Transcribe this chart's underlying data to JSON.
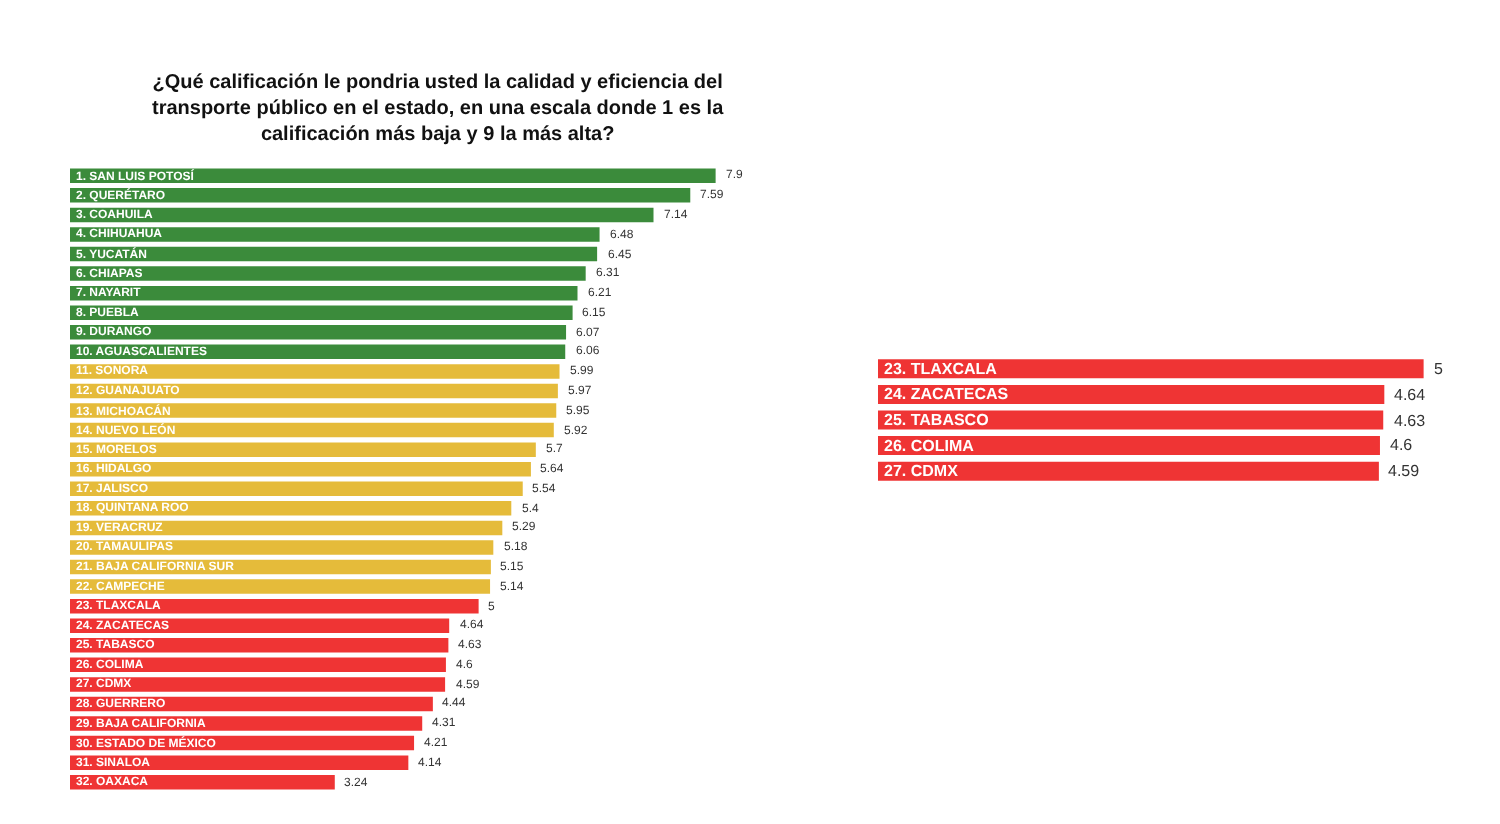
{
  "chart_data": [
    {
      "type": "bar",
      "orientation": "horizontal",
      "title": "¿Qué calificación le pondria usted la calidad y eficiencia del transporte público en el estado, en una escala donde 1 es la calificación más baja y 9 la más alta?",
      "categories": [
        "1. SAN LUIS POTOSÍ",
        "2. QUERÉTARO",
        "3. COAHUILA",
        "4. CHIHUAHUA",
        "5. YUCATÁN",
        "6. CHIAPAS",
        "7. NAYARIT",
        "8. PUEBLA",
        "9. DURANGO",
        "10. AGUASCALIENTES",
        "11. SONORA",
        "12. GUANAJUATO",
        "13. MICHOACÁN",
        "14. NUEVO LEÓN",
        "15. MORELOS",
        "16. HIDALGO",
        "17. JALISCO",
        "18. QUINTANA ROO",
        "19. VERACRUZ",
        "20. TAMAULIPAS",
        "21. BAJA CALIFORNIA SUR",
        "22. CAMPECHE",
        "23. TLAXCALA",
        "24. ZACATECAS",
        "25. TABASCO",
        "26. COLIMA",
        "27. CDMX",
        "28. GUERRERO",
        "29. BAJA CALIFORNIA",
        "30. ESTADO DE MÉXICO",
        "31. SINALOA",
        "32. OAXACA"
      ],
      "values": [
        7.9,
        7.59,
        7.14,
        6.48,
        6.45,
        6.31,
        6.21,
        6.15,
        6.07,
        6.06,
        5.99,
        5.97,
        5.95,
        5.92,
        5.7,
        5.64,
        5.54,
        5.4,
        5.29,
        5.18,
        5.15,
        5.14,
        5,
        4.64,
        4.63,
        4.6,
        4.59,
        4.44,
        4.31,
        4.21,
        4.14,
        3.24
      ],
      "colors": [
        "#3b8b3b",
        "#3b8b3b",
        "#3b8b3b",
        "#3b8b3b",
        "#3b8b3b",
        "#3b8b3b",
        "#3b8b3b",
        "#3b8b3b",
        "#3b8b3b",
        "#3b8b3b",
        "#e5bb3a",
        "#e5bb3a",
        "#e5bb3a",
        "#e5bb3a",
        "#e5bb3a",
        "#e5bb3a",
        "#e5bb3a",
        "#e5bb3a",
        "#e5bb3a",
        "#e5bb3a",
        "#e5bb3a",
        "#e5bb3a",
        "#ef3434",
        "#ef3434",
        "#ef3434",
        "#ef3434",
        "#ef3434",
        "#ef3434",
        "#ef3434",
        "#ef3434",
        "#ef3434",
        "#ef3434"
      ],
      "data_labels": true,
      "tick_labels": false
    },
    {
      "type": "bar",
      "orientation": "horizontal",
      "categories": [
        "23. TLAXCALA",
        "24. ZACATECAS",
        "25. TABASCO",
        "26. COLIMA",
        "27. CDMX"
      ],
      "values": [
        5,
        4.64,
        4.63,
        4.6,
        4.59
      ],
      "colors": [
        "#ef3434",
        "#ef3434",
        "#ef3434",
        "#ef3434",
        "#ef3434"
      ],
      "data_labels": true,
      "tick_labels": false
    }
  ]
}
